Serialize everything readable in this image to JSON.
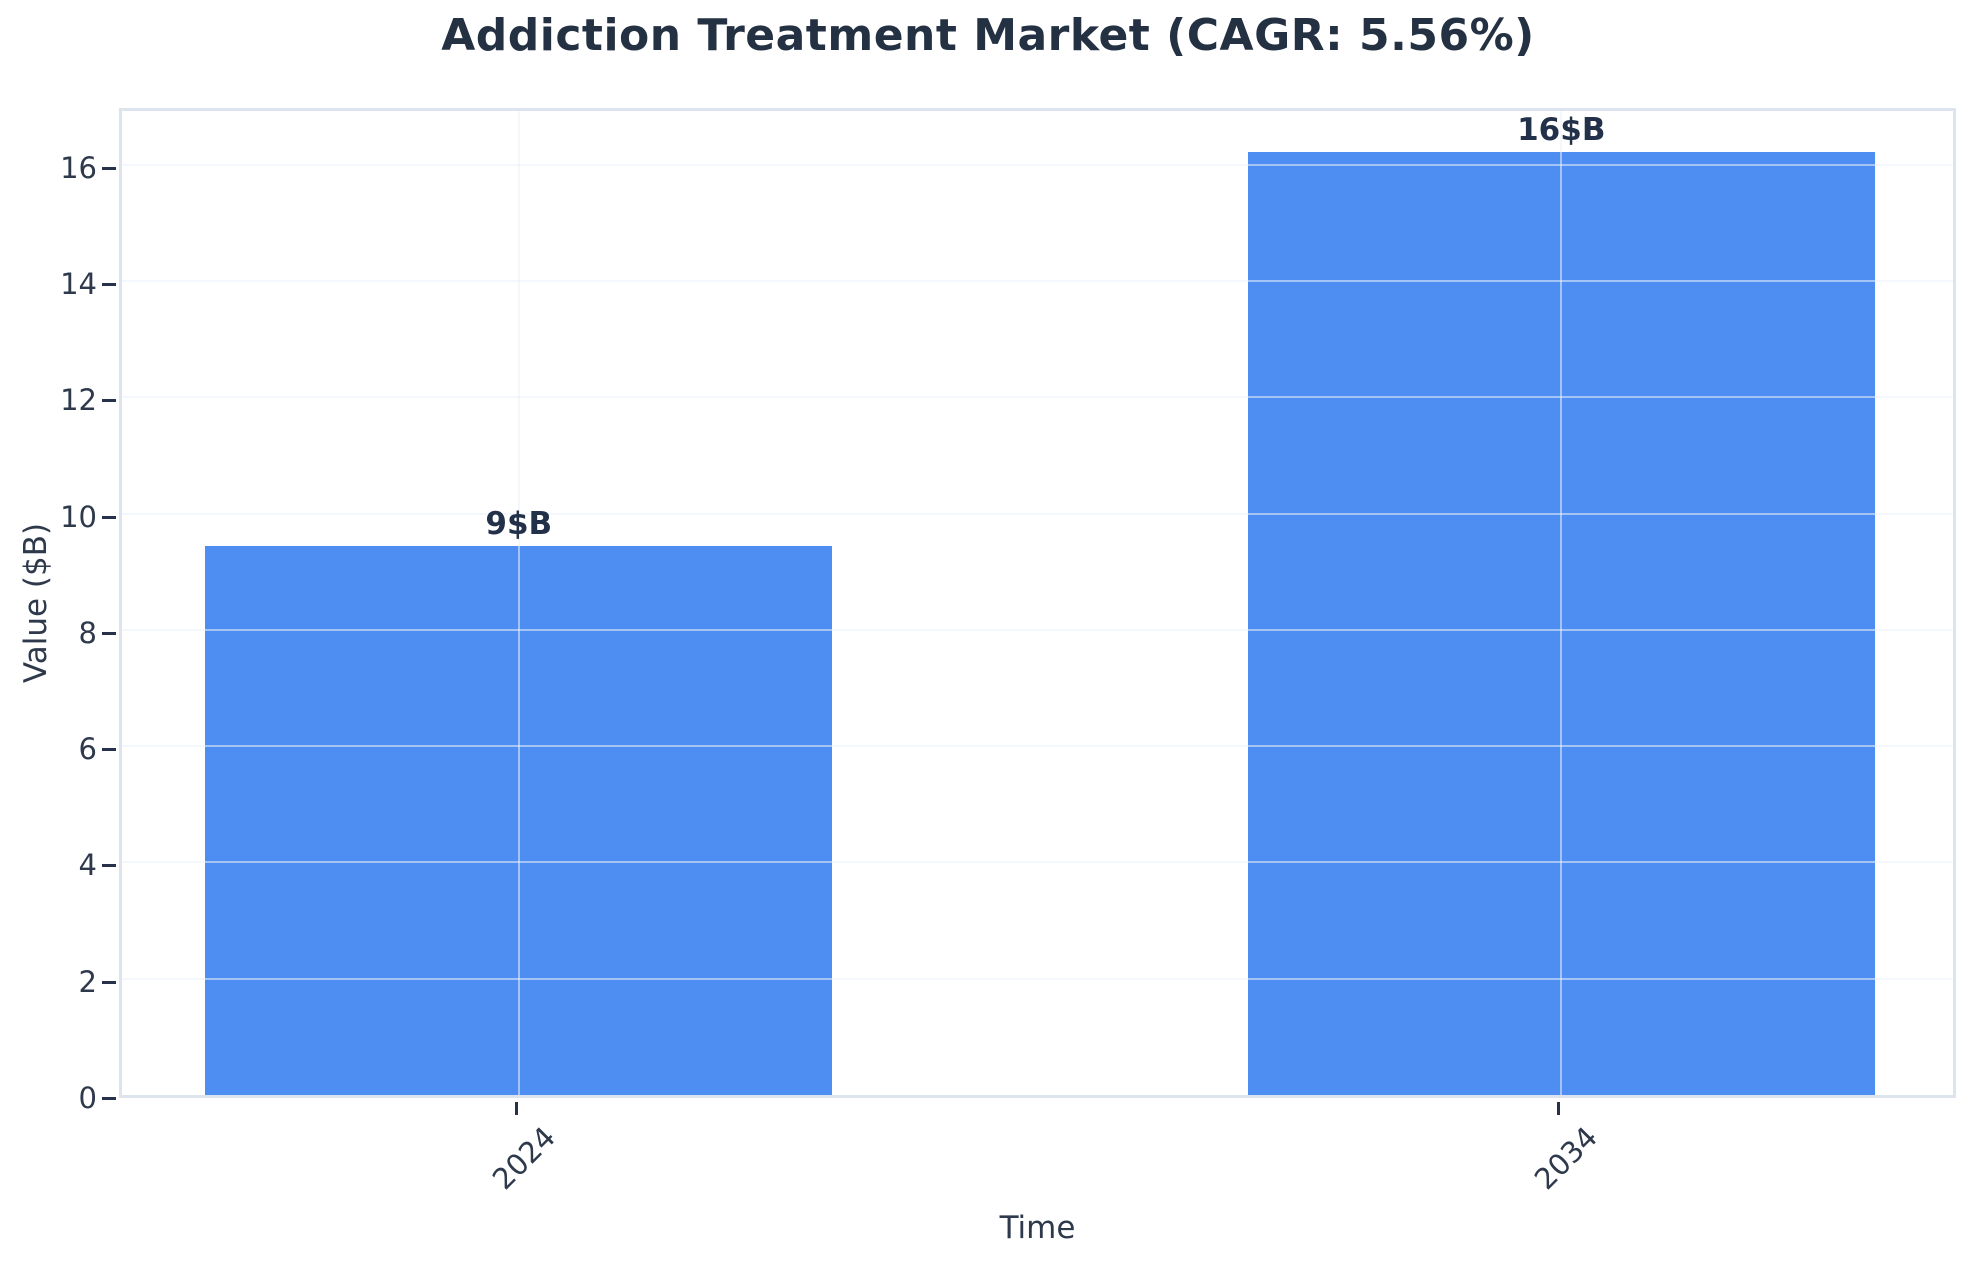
{
  "title": "Addiction Treatment Market (CAGR: 5.56%)",
  "chart_data": {
    "type": "bar",
    "title": "Addiction Treatment Market (CAGR: 5.56%)",
    "categories": [
      "2024",
      "2034"
    ],
    "values": [
      9.45,
      16.23
    ],
    "bar_labels": [
      "9$B",
      "16$B"
    ],
    "xlabel": "Time",
    "ylabel": "Value ($B)",
    "ylim": [
      0,
      17.03
    ],
    "yticks": [
      0,
      2,
      4,
      6,
      8,
      10,
      12,
      14,
      16
    ],
    "grid": true,
    "legend": "none",
    "bar_color": "#4e8ef3",
    "x_tick_rotation_deg": 45,
    "bar_centers_frac": [
      0.216,
      0.7835
    ],
    "bar_width_frac": 0.3413
  }
}
